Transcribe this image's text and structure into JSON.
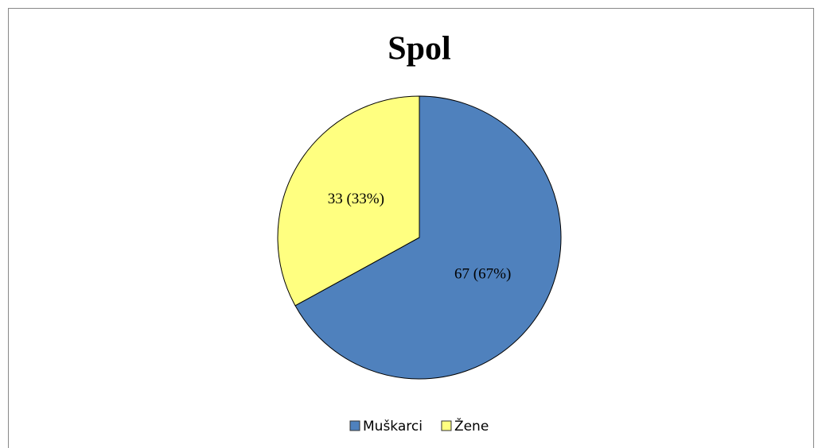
{
  "chart_data": {
    "type": "pie",
    "title": "Spol",
    "categories": [
      "Muškarci",
      "Žene"
    ],
    "values": [
      67,
      33
    ],
    "value_labels": [
      "67 (67%)",
      "33 (33%)"
    ],
    "colors": [
      "#4f81bd",
      "#ffff80"
    ],
    "legend": "bottom"
  }
}
